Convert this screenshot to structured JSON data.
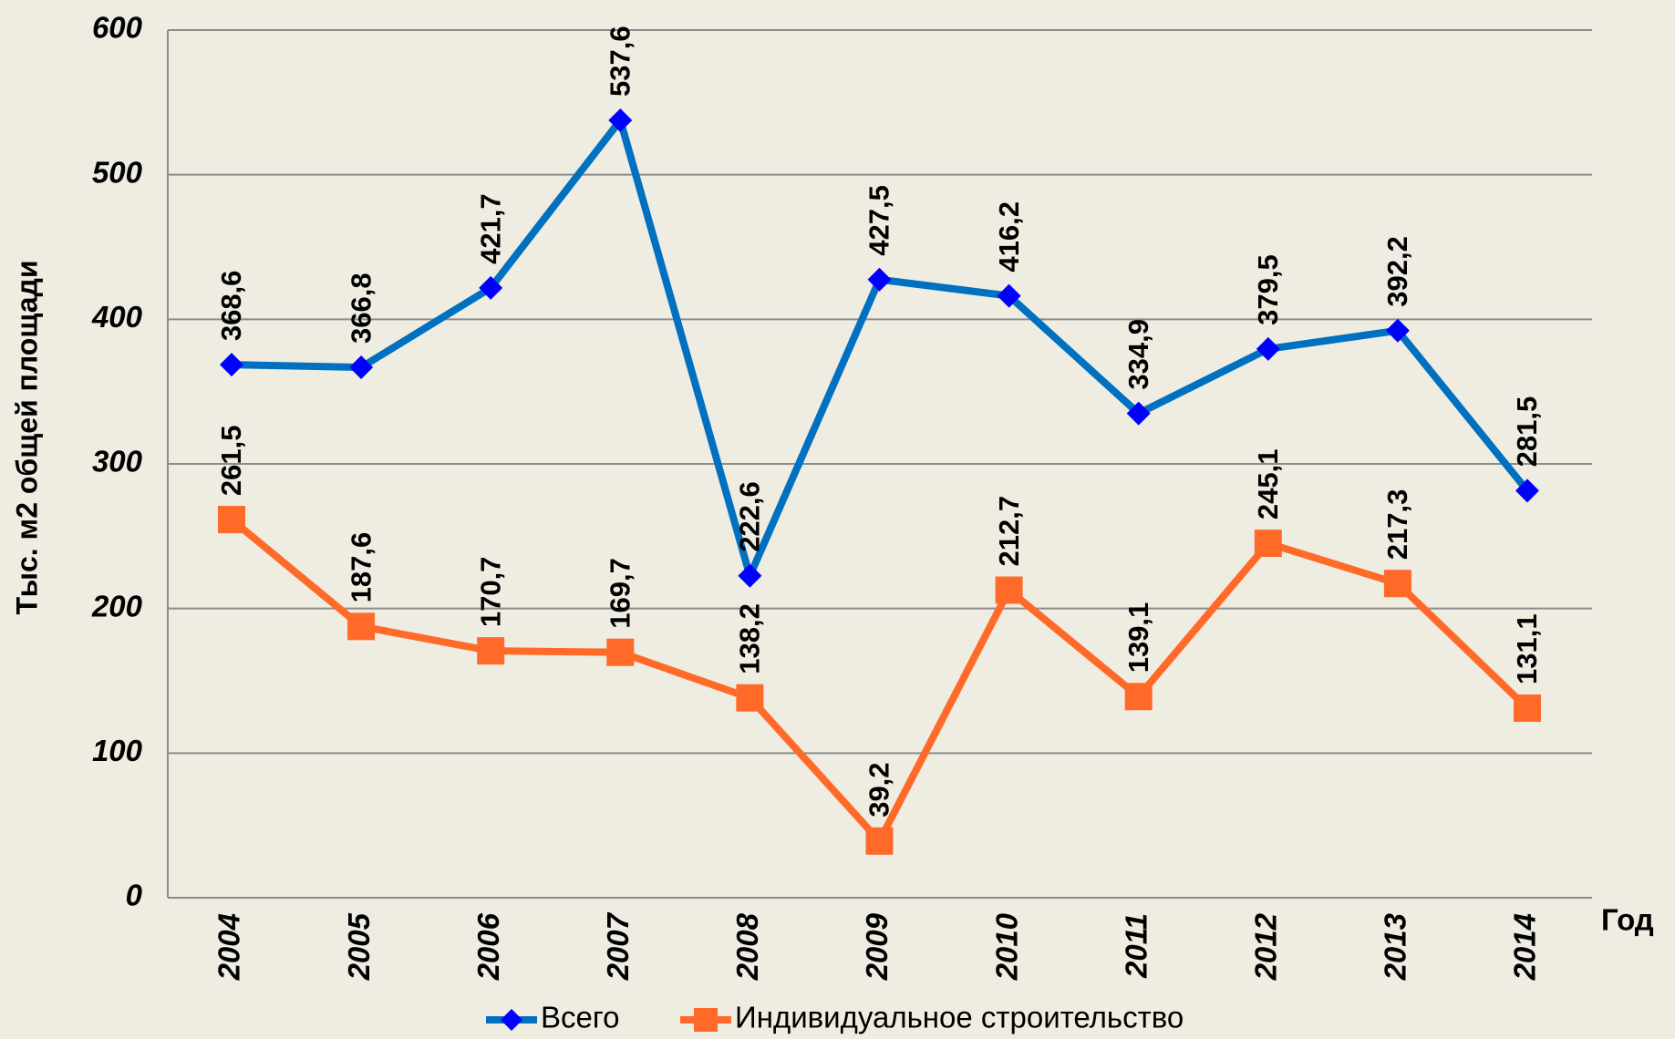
{
  "chart_data": {
    "type": "line",
    "y_label": "Тыс. м2 общей площади",
    "x_label": "Год",
    "categories": [
      "2004",
      "2005",
      "2006",
      "2007",
      "2008",
      "2009",
      "2010",
      "2011",
      "2012",
      "2013",
      "2014"
    ],
    "series": [
      {
        "name": "Всего",
        "color": "#0070c0",
        "marker": "diamond",
        "marker_color": "#0000ff",
        "values": [
          368.6,
          366.8,
          421.7,
          537.6,
          222.6,
          427.5,
          416.2,
          334.9,
          379.5,
          392.2,
          281.5
        ],
        "value_labels": [
          "368,6",
          "366,8",
          "421,7",
          "537,6",
          "222,6",
          "427,5",
          "416,2",
          "334,9",
          "379,5",
          "392,2",
          "281,5"
        ]
      },
      {
        "name": "Индивидуальное строительство",
        "color": "#ff6a28",
        "marker": "square",
        "marker_color": "#ff6a28",
        "values": [
          261.5,
          187.6,
          170.7,
          169.7,
          138.2,
          39.2,
          212.7,
          139.1,
          245.1,
          217.3,
          131.1
        ],
        "value_labels": [
          "261,5",
          "187,6",
          "170,7",
          "169,7",
          "138,2",
          "39,2",
          "212,7",
          "139,1",
          "245,1",
          "217,3",
          "131,1"
        ]
      }
    ],
    "ylim": [
      0,
      600
    ],
    "yticks": [
      0,
      100,
      200,
      300,
      400,
      500,
      600
    ],
    "grid": true,
    "legend": "bottom"
  }
}
